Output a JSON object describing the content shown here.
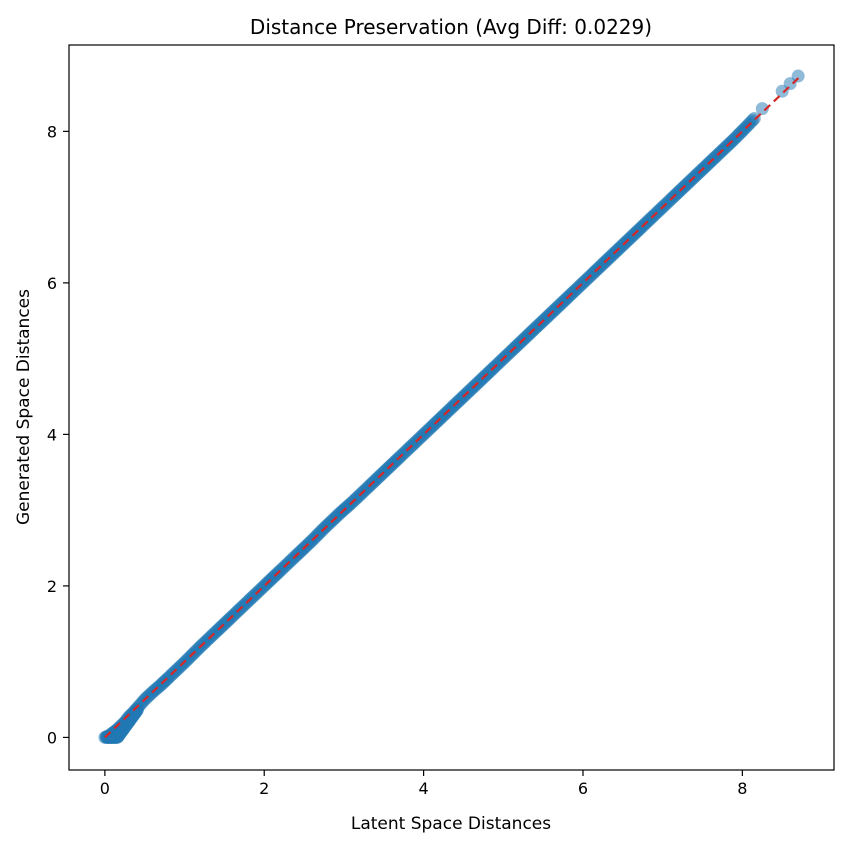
{
  "chart_data": {
    "type": "scatter",
    "title": "Distance Preservation (Avg Diff: 0.0229)",
    "xlabel": "Latent Space Distances",
    "ylabel": "Generated Space Distances",
    "xlim": [
      -0.45,
      9.15
    ],
    "ylim": [
      -0.43,
      9.14
    ],
    "xticks": [
      0,
      2,
      4,
      6,
      8
    ],
    "yticks": [
      0,
      2,
      4,
      6,
      8
    ],
    "xtick_labels": [
      "0",
      "2",
      "4",
      "6",
      "8"
    ],
    "ytick_labels": [
      "0",
      "2",
      "4",
      "6",
      "8"
    ],
    "grid": false,
    "legend": "none",
    "colors": {
      "points": "#1f77b4",
      "reference_line": "#d62728"
    },
    "series": [
      {
        "marker": "circle",
        "alpha": 0.5,
        "x": [
          0.0,
          0.05,
          0.1,
          0.15,
          0.2,
          0.25,
          0.3,
          0.35,
          0.4,
          0.5,
          0.6,
          0.7,
          0.8,
          1.0,
          1.2,
          1.4,
          1.6,
          1.8,
          2.0,
          2.2,
          2.4,
          2.6,
          2.75,
          2.95,
          3.1,
          3.3,
          3.5,
          3.7,
          3.9,
          4.1,
          4.3,
          4.5,
          4.7,
          4.9,
          5.1,
          5.3,
          5.5,
          5.7,
          5.9,
          6.1,
          6.3,
          6.5,
          6.7,
          6.9,
          7.1,
          7.3,
          7.5,
          7.7,
          7.9,
          8.05,
          8.15,
          8.25,
          8.5,
          8.6,
          8.7
        ],
        "y": [
          0.0,
          0.02,
          0.06,
          0.1,
          0.15,
          0.2,
          0.27,
          0.32,
          0.38,
          0.5,
          0.6,
          0.69,
          0.79,
          0.99,
          1.2,
          1.4,
          1.6,
          1.8,
          2.0,
          2.2,
          2.4,
          2.6,
          2.76,
          2.96,
          3.1,
          3.3,
          3.5,
          3.7,
          3.9,
          4.1,
          4.3,
          4.5,
          4.7,
          4.9,
          5.1,
          5.3,
          5.5,
          5.7,
          5.9,
          6.1,
          6.3,
          6.5,
          6.7,
          6.9,
          7.1,
          7.3,
          7.5,
          7.7,
          7.9,
          8.06,
          8.17,
          8.3,
          8.53,
          8.63,
          8.73
        ]
      }
    ],
    "reference_line": {
      "style": "dashed",
      "x": [
        0.0,
        8.73
      ],
      "y": [
        0.0,
        8.73
      ]
    }
  }
}
